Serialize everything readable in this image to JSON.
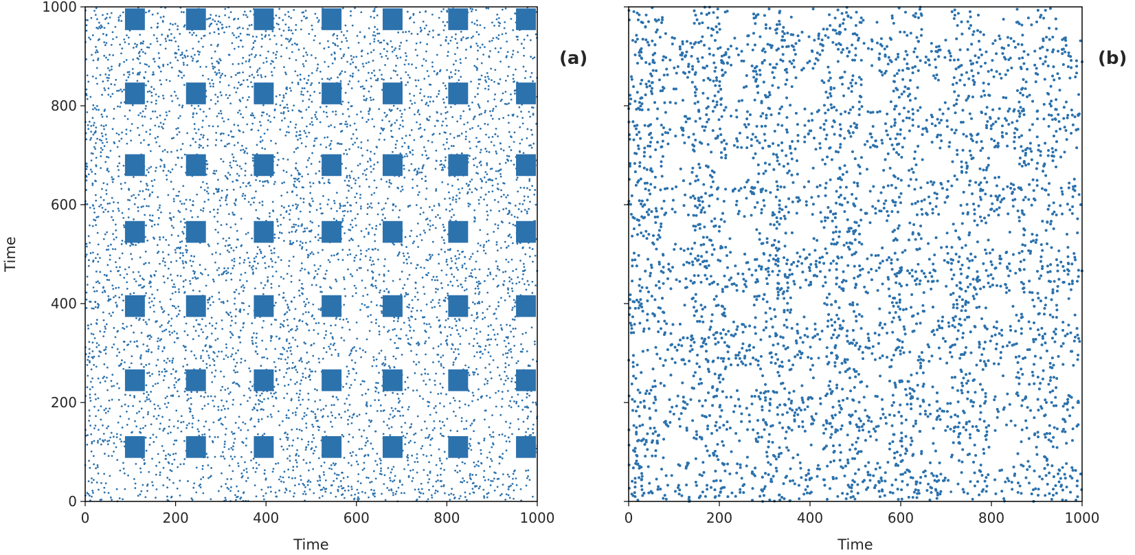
{
  "figure": {
    "panels": [
      {
        "panel_label": "(a)",
        "xlabel": "Time",
        "ylabel": "Time"
      },
      {
        "panel_label": "(b)",
        "xlabel": "Time",
        "ylabel": ""
      }
    ]
  },
  "colors": {
    "points": "#2c72ad",
    "axes": "#000000",
    "text": "#262626",
    "background": "#ffffff"
  },
  "chart_data": [
    {
      "type": "scatter",
      "title": "",
      "panel_label": "(a)",
      "xlabel": "Time",
      "ylabel": "Time",
      "xlim": [
        0,
        1000
      ],
      "ylim": [
        0,
        1000
      ],
      "xticks": [
        "0",
        "200",
        "400",
        "600",
        "800",
        "1000"
      ],
      "yticks": [
        "0",
        "200",
        "400",
        "600",
        "800",
        "1000"
      ],
      "grid": false,
      "description_of_marks": "recurrence plot: dense square blocks at periodic positions plus scattered recurrence points",
      "block_centers_x": [
        110,
        245,
        395,
        545,
        680,
        825,
        975
      ],
      "block_centers_y": [
        110,
        245,
        395,
        545,
        680,
        825,
        975
      ],
      "block_half_width": 22,
      "scatter_density": 0.28
    },
    {
      "type": "scatter",
      "title": "",
      "panel_label": "(b)",
      "xlabel": "Time",
      "ylabel": "",
      "xlim": [
        0,
        1000
      ],
      "ylim": [
        0,
        1000
      ],
      "xticks": [
        "0",
        "200",
        "400",
        "600",
        "800",
        "1000"
      ],
      "yticks": [],
      "grid": false,
      "description_of_marks": "recurrence plot: dense recurrence points with hollow square regions at periodic positions",
      "hole_centers_x": [
        110,
        245,
        395,
        545,
        680,
        825,
        975
      ],
      "hole_centers_y": [
        110,
        245,
        395,
        545,
        680,
        825,
        975
      ],
      "hole_half_width": 30,
      "scatter_density": 0.8
    }
  ]
}
